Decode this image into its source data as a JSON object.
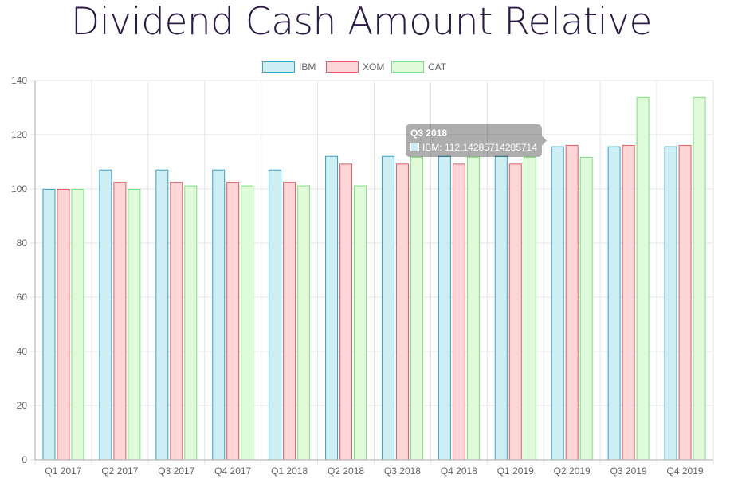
{
  "chart_data": {
    "type": "bar",
    "title": "Dividend Cash Amount Relative",
    "categories": [
      "Q1 2017",
      "Q2 2017",
      "Q3 2017",
      "Q4 2017",
      "Q1 2018",
      "Q2 2018",
      "Q3 2018",
      "Q4 2018",
      "Q1 2019",
      "Q2 2019",
      "Q3 2019",
      "Q4 2019"
    ],
    "series": [
      {
        "name": "IBM",
        "color": "#36a2c9",
        "fill": "#cdeef3",
        "values": [
          100,
          107.14,
          107.14,
          107.14,
          107.14,
          112.14,
          112.14,
          112.14,
          112.14,
          115.7,
          115.7,
          115.7
        ]
      },
      {
        "name": "XOM",
        "color": "#e05c62",
        "fill": "#fdd5d7",
        "values": [
          100,
          102.6,
          102.6,
          102.6,
          102.6,
          109.3,
          109.3,
          109.3,
          109.3,
          116.2,
          116.2,
          116.2
        ]
      },
      {
        "name": "CAT",
        "color": "#7ee07e",
        "fill": "#e0fbd9",
        "values": [
          100,
          100,
          101.3,
          101.3,
          101.3,
          101.3,
          111.8,
          111.8,
          111.8,
          111.8,
          133.9,
          133.9
        ]
      }
    ],
    "ylim": [
      0,
      140
    ],
    "yticks": [
      "0",
      "20",
      "40",
      "60",
      "80",
      "100",
      "120",
      "140"
    ],
    "grid": true,
    "legend": "top-center",
    "tooltip": {
      "title": "Q3 2018",
      "series": "IBM",
      "label": "IBM: 112.14285714285714",
      "color": "#cdeef3"
    }
  }
}
